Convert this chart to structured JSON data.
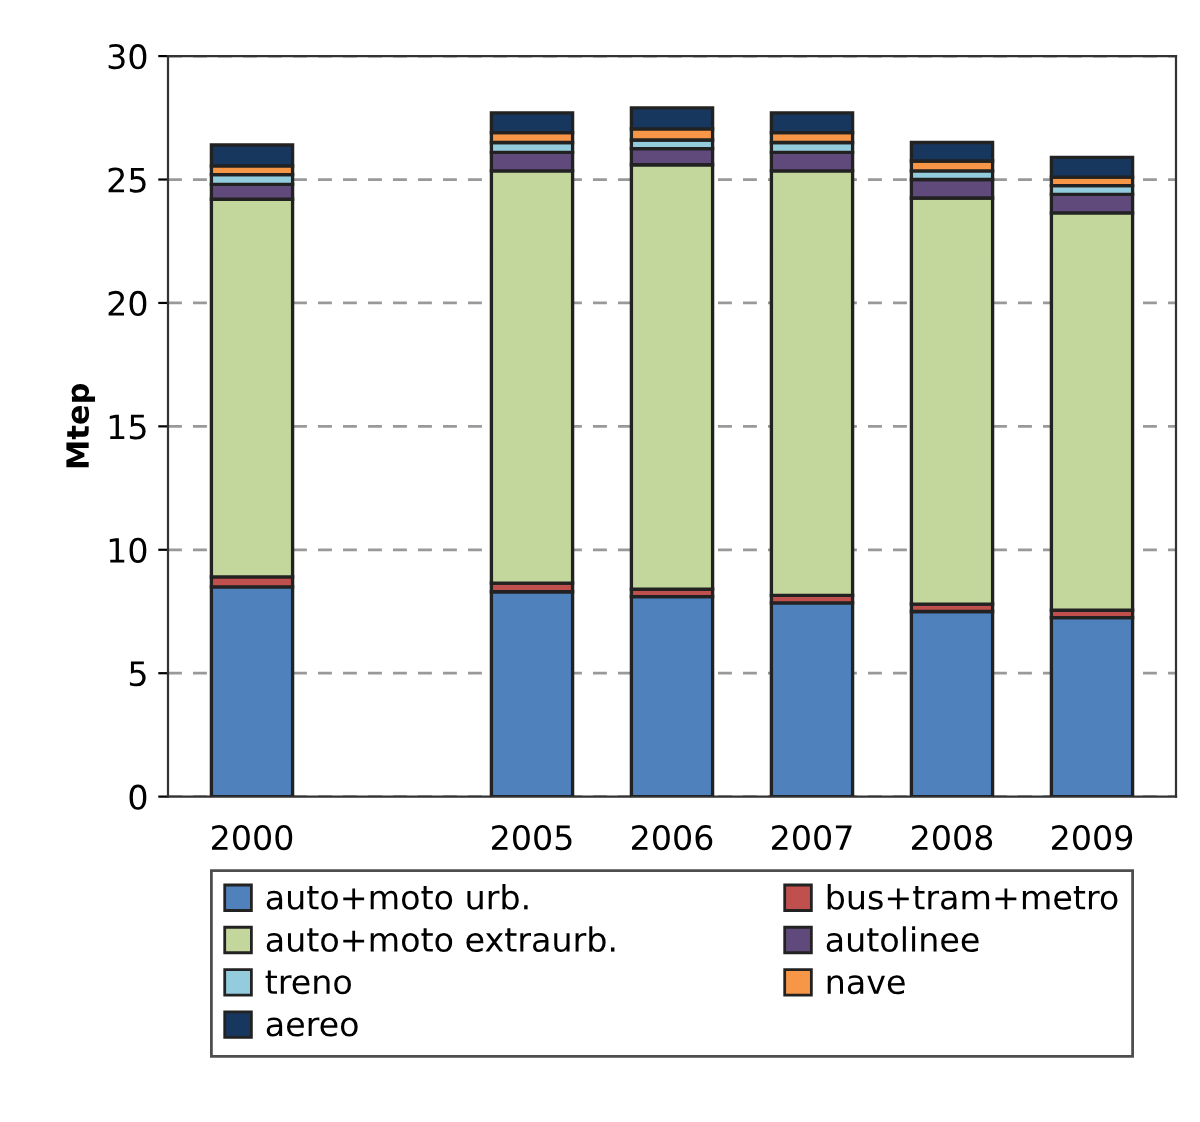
{
  "chart_data": {
    "type": "bar",
    "stacked": true,
    "ylabel": "Mtep",
    "categories": [
      "2000",
      null,
      "2005",
      "2006",
      "2007",
      "2008",
      "2009"
    ],
    "series": [
      {
        "name": "auto+moto urb.",
        "color": "#4f81bd",
        "values": [
          8.5,
          null,
          8.3,
          8.1,
          7.85,
          7.5,
          7.25
        ]
      },
      {
        "name": "bus+tram+metro",
        "color": "#c0504d",
        "values": [
          0.4,
          null,
          0.35,
          0.3,
          0.3,
          0.3,
          0.3
        ]
      },
      {
        "name": "auto+moto extraurb.",
        "color": "#c3d69b",
        "values": [
          15.3,
          null,
          16.7,
          17.2,
          17.2,
          16.45,
          16.1
        ]
      },
      {
        "name": "autolinee",
        "color": "#604a7b",
        "values": [
          0.6,
          null,
          0.75,
          0.65,
          0.75,
          0.75,
          0.75
        ]
      },
      {
        "name": "treno",
        "color": "#93cddd",
        "values": [
          0.4,
          null,
          0.4,
          0.35,
          0.4,
          0.35,
          0.35
        ]
      },
      {
        "name": "nave",
        "color": "#f79646",
        "values": [
          0.35,
          null,
          0.4,
          0.45,
          0.4,
          0.4,
          0.35
        ]
      },
      {
        "name": "aereo",
        "color": "#17375e",
        "values": [
          0.85,
          null,
          0.8,
          0.85,
          0.8,
          0.75,
          0.8
        ]
      }
    ],
    "ylim": [
      0,
      30
    ],
    "yticks": [
      0,
      5,
      10,
      15,
      20,
      25,
      30
    ],
    "grid": "y",
    "legend": "bottom"
  }
}
